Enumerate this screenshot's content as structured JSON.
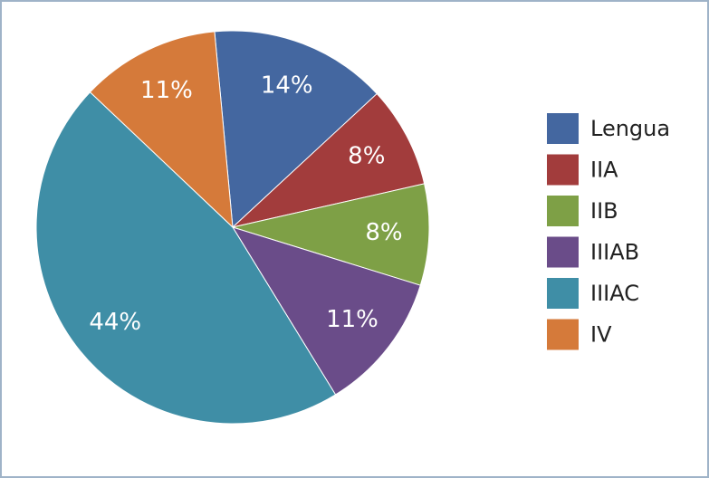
{
  "chart_data": {
    "type": "pie",
    "categories": [
      "Lengua",
      "IIA",
      "IIB",
      "IIIAB",
      "IIIAC",
      "IV"
    ],
    "values": [
      14,
      8,
      8,
      11,
      44,
      11
    ],
    "value_labels": [
      "14%",
      "8%",
      "8%",
      "11%",
      "44%",
      "11%"
    ],
    "colors": [
      "#4467a0",
      "#a23c3c",
      "#7ea046",
      "#6a4c89",
      "#3f8ea6",
      "#d57a3a"
    ],
    "legend": "right"
  }
}
